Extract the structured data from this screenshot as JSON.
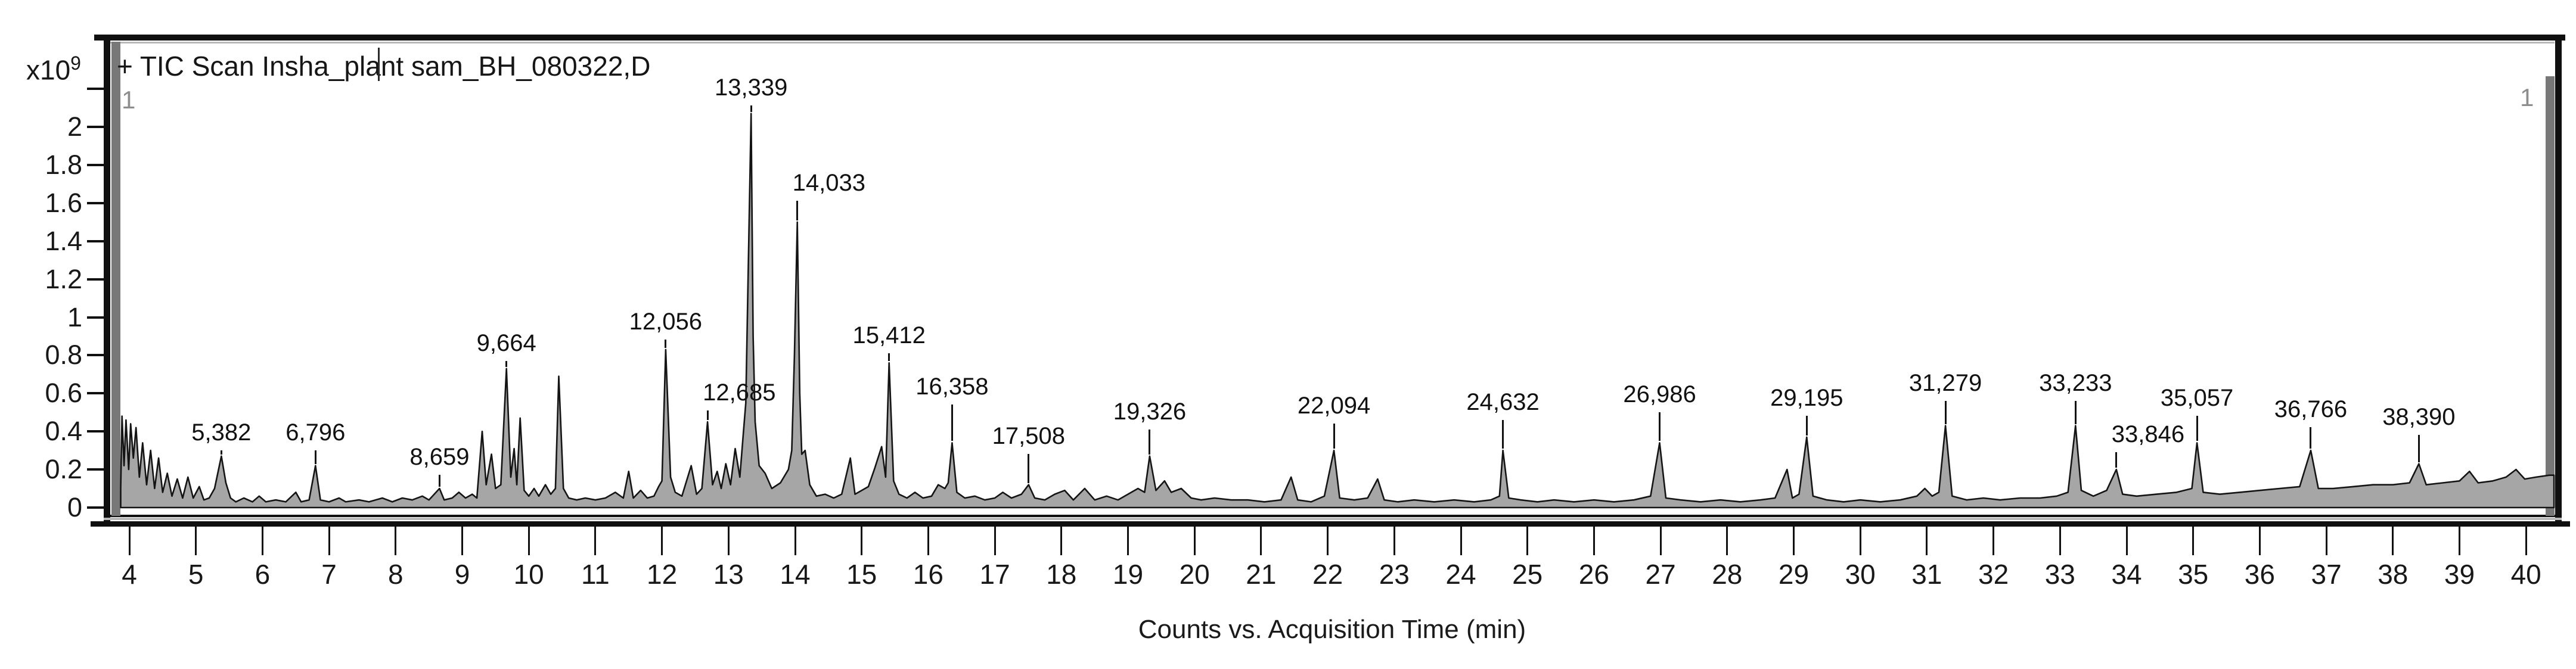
{
  "chart": {
    "title": "+ TIC Scan Insha_plant sam_BH_080322,D",
    "x_axis_title": "Counts vs. Acquisition Time (min)",
    "y_scale_prefix": "x10",
    "y_scale_exponent": "9",
    "left_edge_marker": "1",
    "right_edge_marker": "1"
  },
  "colors": {
    "trace_stroke": "#141414",
    "trace_fill": "#a6a6a6",
    "frame": "#101010",
    "artifact_gray": "#787878",
    "marker_gray": "#8d8d8d"
  },
  "chart_data": {
    "type": "line",
    "subtype": "chromatogram-TIC",
    "title": "+ TIC Scan Insha_plant sam_BH_080322,D",
    "xlabel": "Counts vs. Acquisition Time (min)",
    "ylabel": "Counts (x10^9)",
    "xlim": [
      3.65,
      40.42
    ],
    "ylim": [
      0,
      2.37
    ],
    "grid": false,
    "x_ticks": [
      4,
      5,
      6,
      7,
      8,
      9,
      10,
      11,
      12,
      13,
      14,
      15,
      16,
      17,
      18,
      19,
      20,
      21,
      22,
      23,
      24,
      25,
      26,
      27,
      28,
      29,
      30,
      31,
      32,
      33,
      34,
      35,
      36,
      37,
      38,
      39,
      40
    ],
    "y_tick_values": [
      0,
      0.2,
      0.4,
      0.6,
      0.8,
      1,
      1.2,
      1.4,
      1.6,
      1.8,
      2,
      2.2
    ],
    "y_tick_labels": [
      "0",
      "0.2",
      "0.4",
      "0.6",
      "0.8",
      "1",
      "1.2",
      "1.4",
      "1.6",
      "1.8",
      "2",
      ""
    ],
    "peaks": [
      {
        "rt": 5.382,
        "label": "5,382",
        "height_e9": 0.27,
        "label_y_e9": 0.32,
        "align": "center"
      },
      {
        "rt": 6.796,
        "label": "6,796",
        "height_e9": 0.22,
        "label_y_e9": 0.32,
        "align": "center"
      },
      {
        "rt": 8.659,
        "label": "8,659",
        "height_e9": 0.1,
        "label_y_e9": 0.19,
        "align": "center"
      },
      {
        "rt": 9.664,
        "label": "9,664",
        "height_e9": 0.73,
        "label_y_e9": 0.79,
        "align": "center"
      },
      {
        "rt": 12.056,
        "label": "12,056",
        "height_e9": 0.83,
        "label_y_e9": 0.9,
        "align": "center"
      },
      {
        "rt": 12.685,
        "label": "12,685",
        "height_e9": 0.45,
        "label_y_e9": 0.53,
        "align": "right"
      },
      {
        "rt": 13.339,
        "label": "13,339",
        "height_e9": 2.07,
        "label_y_e9": 2.13,
        "align": "center"
      },
      {
        "rt": 14.033,
        "label": "14,033",
        "height_e9": 1.5,
        "label_y_e9": 1.63,
        "align": "right"
      },
      {
        "rt": 15.412,
        "label": "15,412",
        "height_e9": 0.76,
        "label_y_e9": 0.83,
        "align": "center"
      },
      {
        "rt": 16.358,
        "label": "16,358",
        "height_e9": 0.34,
        "label_y_e9": 0.56,
        "align": "center"
      },
      {
        "rt": 17.508,
        "label": "17,508",
        "height_e9": 0.12,
        "label_y_e9": 0.3,
        "align": "center"
      },
      {
        "rt": 19.326,
        "label": "19,326",
        "height_e9": 0.27,
        "label_y_e9": 0.43,
        "align": "center"
      },
      {
        "rt": 22.094,
        "label": "22,094",
        "height_e9": 0.3,
        "label_y_e9": 0.46,
        "align": "center"
      },
      {
        "rt": 24.632,
        "label": "24,632",
        "height_e9": 0.3,
        "label_y_e9": 0.48,
        "align": "center"
      },
      {
        "rt": 26.986,
        "label": "26,986",
        "height_e9": 0.34,
        "label_y_e9": 0.52,
        "align": "center"
      },
      {
        "rt": 29.195,
        "label": "29,195",
        "height_e9": 0.37,
        "label_y_e9": 0.5,
        "align": "center"
      },
      {
        "rt": 31.279,
        "label": "31,279",
        "height_e9": 0.43,
        "label_y_e9": 0.58,
        "align": "center"
      },
      {
        "rt": 33.233,
        "label": "33,233",
        "height_e9": 0.43,
        "label_y_e9": 0.58,
        "align": "center"
      },
      {
        "rt": 33.846,
        "label": "33,846",
        "height_e9": 0.2,
        "label_y_e9": 0.31,
        "align": "right"
      },
      {
        "rt": 35.057,
        "label": "35,057",
        "height_e9": 0.34,
        "label_y_e9": 0.5,
        "align": "center"
      },
      {
        "rt": 36.766,
        "label": "36,766",
        "height_e9": 0.3,
        "label_y_e9": 0.44,
        "align": "center"
      },
      {
        "rt": 38.39,
        "label": "38,390",
        "height_e9": 0.23,
        "label_y_e9": 0.4,
        "align": "center"
      }
    ],
    "trace": [
      [
        3.87,
        0.1
      ],
      [
        3.89,
        0.48
      ],
      [
        3.92,
        0.22
      ],
      [
        3.95,
        0.46
      ],
      [
        3.99,
        0.2
      ],
      [
        4.02,
        0.44
      ],
      [
        4.06,
        0.26
      ],
      [
        4.1,
        0.42
      ],
      [
        4.15,
        0.16
      ],
      [
        4.2,
        0.34
      ],
      [
        4.26,
        0.12
      ],
      [
        4.32,
        0.3
      ],
      [
        4.38,
        0.1
      ],
      [
        4.44,
        0.26
      ],
      [
        4.5,
        0.08
      ],
      [
        4.57,
        0.18
      ],
      [
        4.64,
        0.06
      ],
      [
        4.72,
        0.15
      ],
      [
        4.8,
        0.05
      ],
      [
        4.88,
        0.16
      ],
      [
        4.96,
        0.05
      ],
      [
        5.05,
        0.11
      ],
      [
        5.12,
        0.04
      ],
      [
        5.2,
        0.05
      ],
      [
        5.28,
        0.1
      ],
      [
        5.382,
        0.27
      ],
      [
        5.45,
        0.13
      ],
      [
        5.52,
        0.05
      ],
      [
        5.6,
        0.03
      ],
      [
        5.72,
        0.05
      ],
      [
        5.85,
        0.03
      ],
      [
        5.95,
        0.06
      ],
      [
        6.05,
        0.03
      ],
      [
        6.2,
        0.04
      ],
      [
        6.35,
        0.03
      ],
      [
        6.5,
        0.08
      ],
      [
        6.58,
        0.03
      ],
      [
        6.7,
        0.04
      ],
      [
        6.796,
        0.22
      ],
      [
        6.87,
        0.04
      ],
      [
        7.0,
        0.03
      ],
      [
        7.15,
        0.05
      ],
      [
        7.25,
        0.03
      ],
      [
        7.45,
        0.04
      ],
      [
        7.6,
        0.03
      ],
      [
        7.8,
        0.05
      ],
      [
        7.95,
        0.03
      ],
      [
        8.1,
        0.05
      ],
      [
        8.25,
        0.04
      ],
      [
        8.4,
        0.06
      ],
      [
        8.5,
        0.04
      ],
      [
        8.659,
        0.1
      ],
      [
        8.73,
        0.04
      ],
      [
        8.85,
        0.05
      ],
      [
        8.95,
        0.08
      ],
      [
        9.05,
        0.05
      ],
      [
        9.15,
        0.07
      ],
      [
        9.22,
        0.05
      ],
      [
        9.3,
        0.4
      ],
      [
        9.36,
        0.12
      ],
      [
        9.44,
        0.28
      ],
      [
        9.5,
        0.1
      ],
      [
        9.58,
        0.12
      ],
      [
        9.664,
        0.73
      ],
      [
        9.73,
        0.16
      ],
      [
        9.78,
        0.31
      ],
      [
        9.82,
        0.12
      ],
      [
        9.87,
        0.47
      ],
      [
        9.93,
        0.09
      ],
      [
        10.0,
        0.06
      ],
      [
        10.08,
        0.1
      ],
      [
        10.15,
        0.06
      ],
      [
        10.25,
        0.12
      ],
      [
        10.33,
        0.07
      ],
      [
        10.4,
        0.1
      ],
      [
        10.45,
        0.69
      ],
      [
        10.52,
        0.1
      ],
      [
        10.6,
        0.05
      ],
      [
        10.72,
        0.04
      ],
      [
        10.85,
        0.05
      ],
      [
        11.0,
        0.04
      ],
      [
        11.15,
        0.05
      ],
      [
        11.3,
        0.08
      ],
      [
        11.42,
        0.05
      ],
      [
        11.5,
        0.19
      ],
      [
        11.57,
        0.05
      ],
      [
        11.68,
        0.09
      ],
      [
        11.78,
        0.05
      ],
      [
        11.88,
        0.06
      ],
      [
        11.95,
        0.11
      ],
      [
        12.0,
        0.14
      ],
      [
        12.056,
        0.83
      ],
      [
        12.13,
        0.16
      ],
      [
        12.2,
        0.08
      ],
      [
        12.3,
        0.06
      ],
      [
        12.44,
        0.22
      ],
      [
        12.52,
        0.07
      ],
      [
        12.6,
        0.1
      ],
      [
        12.685,
        0.45
      ],
      [
        12.76,
        0.12
      ],
      [
        12.83,
        0.19
      ],
      [
        12.89,
        0.1
      ],
      [
        12.96,
        0.23
      ],
      [
        13.03,
        0.12
      ],
      [
        13.1,
        0.31
      ],
      [
        13.17,
        0.16
      ],
      [
        13.22,
        0.38
      ],
      [
        13.26,
        0.55
      ],
      [
        13.339,
        2.07
      ],
      [
        13.37,
        0.9
      ],
      [
        13.4,
        0.45
      ],
      [
        13.46,
        0.22
      ],
      [
        13.55,
        0.18
      ],
      [
        13.65,
        0.1
      ],
      [
        13.78,
        0.13
      ],
      [
        13.9,
        0.2
      ],
      [
        13.95,
        0.3
      ],
      [
        13.99,
        0.8
      ],
      [
        14.033,
        1.5
      ],
      [
        14.07,
        0.6
      ],
      [
        14.1,
        0.28
      ],
      [
        14.15,
        0.3
      ],
      [
        14.22,
        0.12
      ],
      [
        14.32,
        0.06
      ],
      [
        14.45,
        0.07
      ],
      [
        14.58,
        0.05
      ],
      [
        14.7,
        0.07
      ],
      [
        14.83,
        0.26
      ],
      [
        14.9,
        0.07
      ],
      [
        15.0,
        0.09
      ],
      [
        15.1,
        0.11
      ],
      [
        15.2,
        0.21
      ],
      [
        15.3,
        0.32
      ],
      [
        15.36,
        0.16
      ],
      [
        15.412,
        0.76
      ],
      [
        15.48,
        0.14
      ],
      [
        15.56,
        0.07
      ],
      [
        15.68,
        0.05
      ],
      [
        15.8,
        0.08
      ],
      [
        15.92,
        0.05
      ],
      [
        16.05,
        0.06
      ],
      [
        16.15,
        0.12
      ],
      [
        16.25,
        0.1
      ],
      [
        16.3,
        0.13
      ],
      [
        16.358,
        0.34
      ],
      [
        16.43,
        0.08
      ],
      [
        16.55,
        0.05
      ],
      [
        16.7,
        0.06
      ],
      [
        16.85,
        0.04
      ],
      [
        17.0,
        0.05
      ],
      [
        17.12,
        0.08
      ],
      [
        17.25,
        0.05
      ],
      [
        17.4,
        0.07
      ],
      [
        17.508,
        0.12
      ],
      [
        17.6,
        0.05
      ],
      [
        17.75,
        0.04
      ],
      [
        17.9,
        0.07
      ],
      [
        18.05,
        0.09
      ],
      [
        18.18,
        0.04
      ],
      [
        18.35,
        0.1
      ],
      [
        18.5,
        0.04
      ],
      [
        18.68,
        0.06
      ],
      [
        18.85,
        0.04
      ],
      [
        19.0,
        0.07
      ],
      [
        19.15,
        0.1
      ],
      [
        19.25,
        0.08
      ],
      [
        19.326,
        0.27
      ],
      [
        19.42,
        0.09
      ],
      [
        19.55,
        0.14
      ],
      [
        19.65,
        0.08
      ],
      [
        19.8,
        0.1
      ],
      [
        19.95,
        0.05
      ],
      [
        20.1,
        0.04
      ],
      [
        20.3,
        0.05
      ],
      [
        20.55,
        0.04
      ],
      [
        20.8,
        0.04
      ],
      [
        21.05,
        0.03
      ],
      [
        21.3,
        0.04
      ],
      [
        21.45,
        0.16
      ],
      [
        21.55,
        0.04
      ],
      [
        21.75,
        0.03
      ],
      [
        21.95,
        0.06
      ],
      [
        22.094,
        0.3
      ],
      [
        22.18,
        0.05
      ],
      [
        22.4,
        0.04
      ],
      [
        22.6,
        0.05
      ],
      [
        22.75,
        0.15
      ],
      [
        22.85,
        0.04
      ],
      [
        23.05,
        0.03
      ],
      [
        23.3,
        0.04
      ],
      [
        23.6,
        0.03
      ],
      [
        23.9,
        0.04
      ],
      [
        24.2,
        0.03
      ],
      [
        24.45,
        0.04
      ],
      [
        24.58,
        0.06
      ],
      [
        24.632,
        0.3
      ],
      [
        24.72,
        0.05
      ],
      [
        24.9,
        0.04
      ],
      [
        25.15,
        0.03
      ],
      [
        25.4,
        0.04
      ],
      [
        25.7,
        0.03
      ],
      [
        26.0,
        0.04
      ],
      [
        26.3,
        0.03
      ],
      [
        26.6,
        0.04
      ],
      [
        26.85,
        0.06
      ],
      [
        26.986,
        0.34
      ],
      [
        27.08,
        0.05
      ],
      [
        27.3,
        0.04
      ],
      [
        27.6,
        0.03
      ],
      [
        27.9,
        0.04
      ],
      [
        28.2,
        0.03
      ],
      [
        28.5,
        0.04
      ],
      [
        28.72,
        0.05
      ],
      [
        28.9,
        0.2
      ],
      [
        28.98,
        0.05
      ],
      [
        29.08,
        0.07
      ],
      [
        29.195,
        0.37
      ],
      [
        29.29,
        0.06
      ],
      [
        29.5,
        0.04
      ],
      [
        29.75,
        0.03
      ],
      [
        30.0,
        0.04
      ],
      [
        30.3,
        0.03
      ],
      [
        30.6,
        0.04
      ],
      [
        30.85,
        0.06
      ],
      [
        30.97,
        0.1
      ],
      [
        31.08,
        0.06
      ],
      [
        31.18,
        0.08
      ],
      [
        31.279,
        0.43
      ],
      [
        31.38,
        0.06
      ],
      [
        31.6,
        0.04
      ],
      [
        31.85,
        0.05
      ],
      [
        32.1,
        0.04
      ],
      [
        32.4,
        0.05
      ],
      [
        32.7,
        0.05
      ],
      [
        32.95,
        0.06
      ],
      [
        33.12,
        0.08
      ],
      [
        33.233,
        0.43
      ],
      [
        33.32,
        0.09
      ],
      [
        33.5,
        0.06
      ],
      [
        33.7,
        0.09
      ],
      [
        33.846,
        0.2
      ],
      [
        33.94,
        0.07
      ],
      [
        34.15,
        0.06
      ],
      [
        34.45,
        0.07
      ],
      [
        34.75,
        0.08
      ],
      [
        34.98,
        0.1
      ],
      [
        35.057,
        0.34
      ],
      [
        35.15,
        0.08
      ],
      [
        35.4,
        0.07
      ],
      [
        35.7,
        0.08
      ],
      [
        36.0,
        0.09
      ],
      [
        36.3,
        0.1
      ],
      [
        36.6,
        0.11
      ],
      [
        36.766,
        0.3
      ],
      [
        36.88,
        0.1
      ],
      [
        37.1,
        0.1
      ],
      [
        37.4,
        0.11
      ],
      [
        37.7,
        0.12
      ],
      [
        38.0,
        0.12
      ],
      [
        38.25,
        0.13
      ],
      [
        38.39,
        0.23
      ],
      [
        38.5,
        0.12
      ],
      [
        38.75,
        0.13
      ],
      [
        39.0,
        0.14
      ],
      [
        39.15,
        0.19
      ],
      [
        39.28,
        0.13
      ],
      [
        39.5,
        0.14
      ],
      [
        39.7,
        0.16
      ],
      [
        39.85,
        0.2
      ],
      [
        39.98,
        0.15
      ],
      [
        40.15,
        0.16
      ],
      [
        40.35,
        0.17
      ],
      [
        40.42,
        0.17
      ]
    ]
  }
}
